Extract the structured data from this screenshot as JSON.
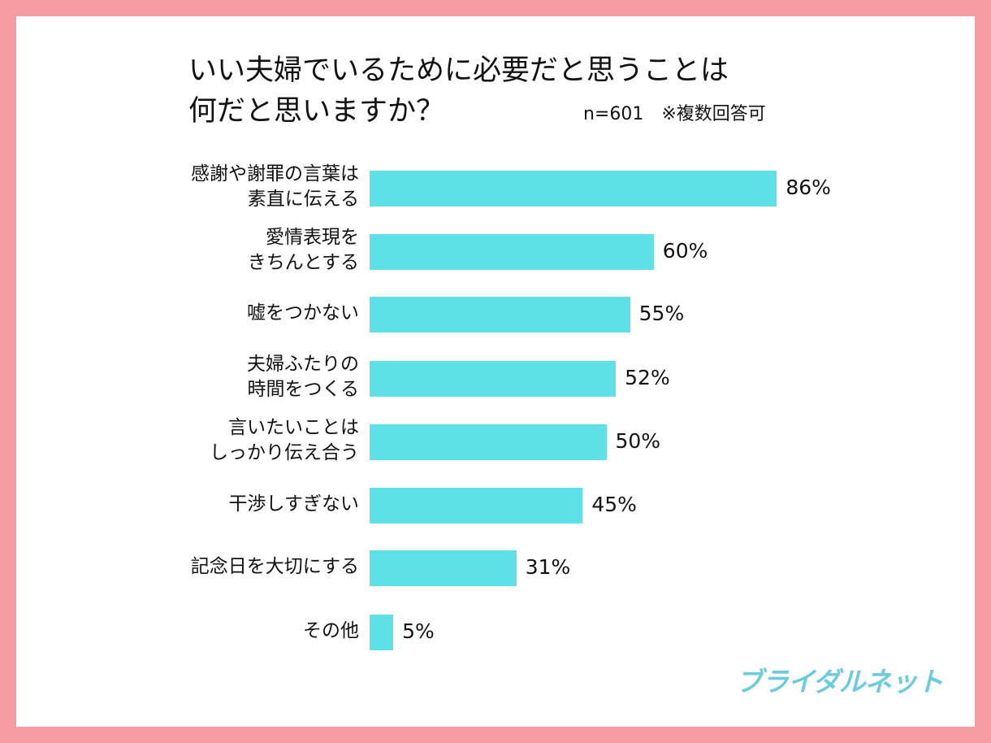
{
  "chart_data": {
    "type": "bar",
    "orientation": "horizontal",
    "title": "いい夫婦でいるために必要だと思うことは\n何だと思いますか？",
    "title_line1": "いい夫婦でいるために必要だと思うことは",
    "title_line2": "何だと思いますか？",
    "note": "n=601　※複数回答可",
    "categories": [
      "感謝や謝罪の言葉は\n素直に伝える",
      "愛情表現を\nきちんとする",
      "嘘をつかない",
      "夫婦ふたりの\n時間をつくる",
      "言いたいことは\nしっかり伝え合う",
      "干渉しすぎない",
      "記念日を大切にする",
      "その他"
    ],
    "values": [
      86,
      60,
      55,
      52,
      50,
      45,
      31,
      5
    ],
    "value_labels": [
      "86%",
      "60%",
      "55%",
      "52%",
      "50%",
      "45%",
      "31%",
      "5%"
    ],
    "unit": "%",
    "xlim": [
      0,
      100
    ],
    "grid": false,
    "bar_color": "#5de0e6"
  },
  "logo": "ブライダルネット",
  "colors": {
    "frame": "#f89ca4",
    "logo": "#6ccbdc"
  }
}
